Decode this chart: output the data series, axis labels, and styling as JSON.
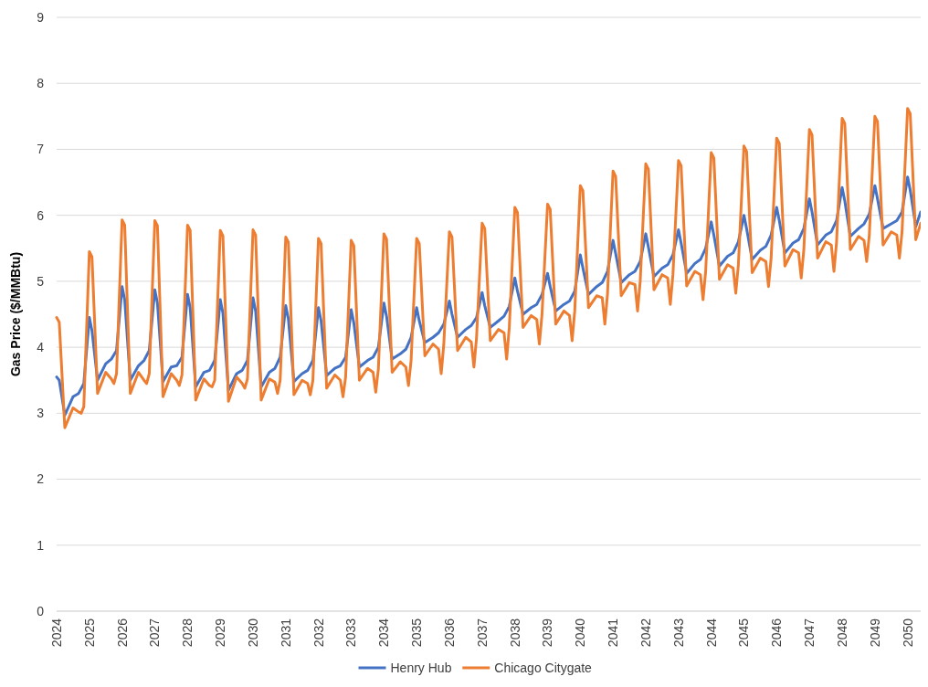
{
  "chart_data": {
    "type": "line",
    "ylabel": "Gas Price ($/MMBtu)",
    "xlim": [
      2024,
      2050.4
    ],
    "xticks": [
      2024,
      2025,
      2026,
      2027,
      2028,
      2029,
      2030,
      2031,
      2032,
      2033,
      2034,
      2035,
      2036,
      2037,
      2038,
      2039,
      2040,
      2041,
      2042,
      2043,
      2044,
      2045,
      2046,
      2047,
      2048,
      2049,
      2050
    ],
    "ylim": [
      0,
      9
    ],
    "yticks": [
      0,
      1,
      2,
      3,
      4,
      5,
      6,
      7,
      8,
      9
    ],
    "grid": "y",
    "legend": "bottom",
    "marker": "none",
    "line_style": "solid",
    "series": [
      {
        "name": "Henry Hub",
        "color": "#4472c4",
        "x": [
          2024,
          2024.08,
          2024.25,
          2024.5,
          2024.67,
          2024.83,
          2025,
          2025.08,
          2025.25,
          2025.5,
          2025.67,
          2025.83,
          2026,
          2026.08,
          2026.25,
          2026.5,
          2026.67,
          2026.83,
          2027,
          2027.08,
          2027.25,
          2027.5,
          2027.67,
          2027.83,
          2028,
          2028.08,
          2028.25,
          2028.5,
          2028.67,
          2028.83,
          2029,
          2029.08,
          2029.25,
          2029.5,
          2029.67,
          2029.83,
          2030,
          2030.08,
          2030.25,
          2030.5,
          2030.67,
          2030.83,
          2031,
          2031.08,
          2031.25,
          2031.5,
          2031.67,
          2031.83,
          2032,
          2032.08,
          2032.25,
          2032.5,
          2032.67,
          2032.83,
          2033,
          2033.08,
          2033.25,
          2033.5,
          2033.67,
          2033.83,
          2034,
          2034.08,
          2034.25,
          2034.5,
          2034.67,
          2034.83,
          2035,
          2035.08,
          2035.25,
          2035.5,
          2035.67,
          2035.83,
          2036,
          2036.08,
          2036.25,
          2036.5,
          2036.67,
          2036.83,
          2037,
          2037.08,
          2037.25,
          2037.5,
          2037.67,
          2037.83,
          2038,
          2038.08,
          2038.25,
          2038.5,
          2038.67,
          2038.83,
          2039,
          2039.08,
          2039.25,
          2039.5,
          2039.67,
          2039.83,
          2040,
          2040.08,
          2040.25,
          2040.5,
          2040.67,
          2040.83,
          2041,
          2041.08,
          2041.25,
          2041.5,
          2041.67,
          2041.83,
          2042,
          2042.08,
          2042.25,
          2042.5,
          2042.67,
          2042.83,
          2043,
          2043.08,
          2043.25,
          2043.5,
          2043.67,
          2043.83,
          2044,
          2044.08,
          2044.25,
          2044.5,
          2044.67,
          2044.83,
          2045,
          2045.08,
          2045.25,
          2045.5,
          2045.67,
          2045.83,
          2046,
          2046.08,
          2046.25,
          2046.5,
          2046.67,
          2046.83,
          2047,
          2047.08,
          2047.25,
          2047.5,
          2047.67,
          2047.83,
          2048,
          2048.08,
          2048.25,
          2048.5,
          2048.67,
          2048.83,
          2049,
          2049.08,
          2049.25,
          2049.5,
          2049.67,
          2049.83,
          2050,
          2050.08,
          2050.25,
          2050.4
        ],
        "values": [
          3.55,
          3.5,
          2.97,
          3.25,
          3.3,
          3.45,
          4.45,
          4.25,
          3.5,
          3.75,
          3.82,
          3.95,
          4.92,
          4.72,
          3.5,
          3.72,
          3.8,
          3.95,
          4.87,
          4.67,
          3.48,
          3.7,
          3.72,
          3.85,
          4.8,
          4.6,
          3.4,
          3.62,
          3.65,
          3.8,
          4.72,
          4.52,
          3.35,
          3.6,
          3.65,
          3.8,
          4.75,
          4.55,
          3.4,
          3.62,
          3.68,
          3.85,
          4.63,
          4.43,
          3.48,
          3.6,
          3.65,
          3.8,
          4.6,
          4.4,
          3.57,
          3.68,
          3.72,
          3.85,
          4.57,
          4.37,
          3.7,
          3.8,
          3.85,
          4.0,
          4.67,
          4.47,
          3.82,
          3.9,
          3.97,
          4.15,
          4.6,
          4.4,
          4.07,
          4.15,
          4.22,
          4.35,
          4.7,
          4.5,
          4.15,
          4.27,
          4.33,
          4.45,
          4.83,
          4.63,
          4.3,
          4.4,
          4.47,
          4.62,
          5.05,
          4.85,
          4.5,
          4.6,
          4.65,
          4.8,
          5.12,
          4.92,
          4.55,
          4.65,
          4.7,
          4.85,
          5.4,
          5.2,
          4.8,
          4.92,
          4.98,
          5.15,
          5.62,
          5.42,
          4.98,
          5.1,
          5.15,
          5.3,
          5.72,
          5.52,
          5.07,
          5.2,
          5.25,
          5.4,
          5.78,
          5.58,
          5.12,
          5.27,
          5.33,
          5.5,
          5.9,
          5.7,
          5.23,
          5.38,
          5.43,
          5.6,
          6.0,
          5.8,
          5.33,
          5.47,
          5.53,
          5.7,
          6.12,
          5.92,
          5.43,
          5.58,
          5.63,
          5.8,
          6.25,
          6.05,
          5.55,
          5.7,
          5.75,
          5.92,
          6.42,
          6.22,
          5.68,
          5.8,
          5.87,
          6.02,
          6.45,
          6.25,
          5.8,
          5.87,
          5.92,
          6.05,
          6.58,
          6.38,
          5.83,
          6.05
        ]
      },
      {
        "name": "Chicago Citygate",
        "color": "#ed7d31",
        "x": [
          2024,
          2024.08,
          2024.25,
          2024.5,
          2024.67,
          2024.75,
          2024.83,
          2025,
          2025.08,
          2025.25,
          2025.5,
          2025.67,
          2025.75,
          2025.83,
          2026,
          2026.08,
          2026.25,
          2026.5,
          2026.67,
          2026.75,
          2026.83,
          2027,
          2027.08,
          2027.25,
          2027.5,
          2027.67,
          2027.75,
          2027.83,
          2028,
          2028.08,
          2028.25,
          2028.5,
          2028.67,
          2028.75,
          2028.83,
          2029,
          2029.08,
          2029.25,
          2029.5,
          2029.67,
          2029.75,
          2029.83,
          2030,
          2030.08,
          2030.25,
          2030.5,
          2030.67,
          2030.75,
          2030.83,
          2031,
          2031.08,
          2031.25,
          2031.5,
          2031.67,
          2031.75,
          2031.83,
          2032,
          2032.08,
          2032.25,
          2032.5,
          2032.67,
          2032.75,
          2032.83,
          2033,
          2033.08,
          2033.25,
          2033.5,
          2033.67,
          2033.75,
          2033.83,
          2034,
          2034.08,
          2034.25,
          2034.5,
          2034.67,
          2034.75,
          2034.83,
          2035,
          2035.08,
          2035.25,
          2035.5,
          2035.67,
          2035.75,
          2035.83,
          2036,
          2036.08,
          2036.25,
          2036.5,
          2036.67,
          2036.75,
          2036.83,
          2037,
          2037.08,
          2037.25,
          2037.5,
          2037.67,
          2037.75,
          2037.83,
          2038,
          2038.08,
          2038.25,
          2038.5,
          2038.67,
          2038.75,
          2038.83,
          2039,
          2039.08,
          2039.25,
          2039.5,
          2039.67,
          2039.75,
          2039.83,
          2040,
          2040.08,
          2040.25,
          2040.5,
          2040.67,
          2040.75,
          2040.83,
          2041,
          2041.08,
          2041.25,
          2041.5,
          2041.67,
          2041.75,
          2041.83,
          2042,
          2042.08,
          2042.25,
          2042.5,
          2042.67,
          2042.75,
          2042.83,
          2043,
          2043.08,
          2043.25,
          2043.5,
          2043.67,
          2043.75,
          2043.83,
          2044,
          2044.08,
          2044.25,
          2044.5,
          2044.67,
          2044.75,
          2044.83,
          2045,
          2045.08,
          2045.25,
          2045.5,
          2045.67,
          2045.75,
          2045.83,
          2046,
          2046.08,
          2046.25,
          2046.5,
          2046.67,
          2046.75,
          2046.83,
          2047,
          2047.08,
          2047.25,
          2047.5,
          2047.67,
          2047.75,
          2047.83,
          2048,
          2048.08,
          2048.25,
          2048.5,
          2048.67,
          2048.75,
          2048.83,
          2049,
          2049.08,
          2049.25,
          2049.5,
          2049.67,
          2049.75,
          2049.83,
          2050,
          2050.08,
          2050.25,
          2050.4
        ],
        "values": [
          4.45,
          4.38,
          2.78,
          3.08,
          3.02,
          3.0,
          3.1,
          5.45,
          5.37,
          3.3,
          3.62,
          3.52,
          3.45,
          3.6,
          5.93,
          5.85,
          3.3,
          3.62,
          3.5,
          3.45,
          3.6,
          5.92,
          5.84,
          3.25,
          3.6,
          3.5,
          3.42,
          3.58,
          5.85,
          5.77,
          3.2,
          3.52,
          3.42,
          3.4,
          3.5,
          5.77,
          5.69,
          3.18,
          3.55,
          3.45,
          3.38,
          3.52,
          5.78,
          5.7,
          3.2,
          3.52,
          3.47,
          3.3,
          3.5,
          5.67,
          5.59,
          3.28,
          3.5,
          3.45,
          3.28,
          3.5,
          5.65,
          5.57,
          3.38,
          3.58,
          3.5,
          3.25,
          3.55,
          5.62,
          5.54,
          3.5,
          3.68,
          3.62,
          3.32,
          3.67,
          5.72,
          5.64,
          3.62,
          3.78,
          3.7,
          3.42,
          3.8,
          5.65,
          5.57,
          3.87,
          4.05,
          3.97,
          3.6,
          4.05,
          5.75,
          5.67,
          3.95,
          4.15,
          4.08,
          3.7,
          4.15,
          5.88,
          5.8,
          4.1,
          4.27,
          4.22,
          3.82,
          4.3,
          6.12,
          6.04,
          4.3,
          4.48,
          4.42,
          4.05,
          4.5,
          6.17,
          6.09,
          4.35,
          4.55,
          4.48,
          4.1,
          4.55,
          6.45,
          6.37,
          4.6,
          4.78,
          4.75,
          4.35,
          4.8,
          6.67,
          6.59,
          4.78,
          4.98,
          4.95,
          4.55,
          5.0,
          6.78,
          6.7,
          4.87,
          5.1,
          5.05,
          4.65,
          5.1,
          6.83,
          6.75,
          4.93,
          5.15,
          5.1,
          4.72,
          5.15,
          6.95,
          6.87,
          5.03,
          5.25,
          5.2,
          4.82,
          5.25,
          7.05,
          6.97,
          5.13,
          5.35,
          5.3,
          4.92,
          5.35,
          7.17,
          7.09,
          5.23,
          5.48,
          5.43,
          5.05,
          5.48,
          7.3,
          7.22,
          5.35,
          5.6,
          5.55,
          5.15,
          5.6,
          7.47,
          7.39,
          5.48,
          5.68,
          5.62,
          5.3,
          5.7,
          7.5,
          7.42,
          5.55,
          5.75,
          5.7,
          5.35,
          5.75,
          7.62,
          7.54,
          5.63,
          5.88
        ]
      }
    ]
  }
}
